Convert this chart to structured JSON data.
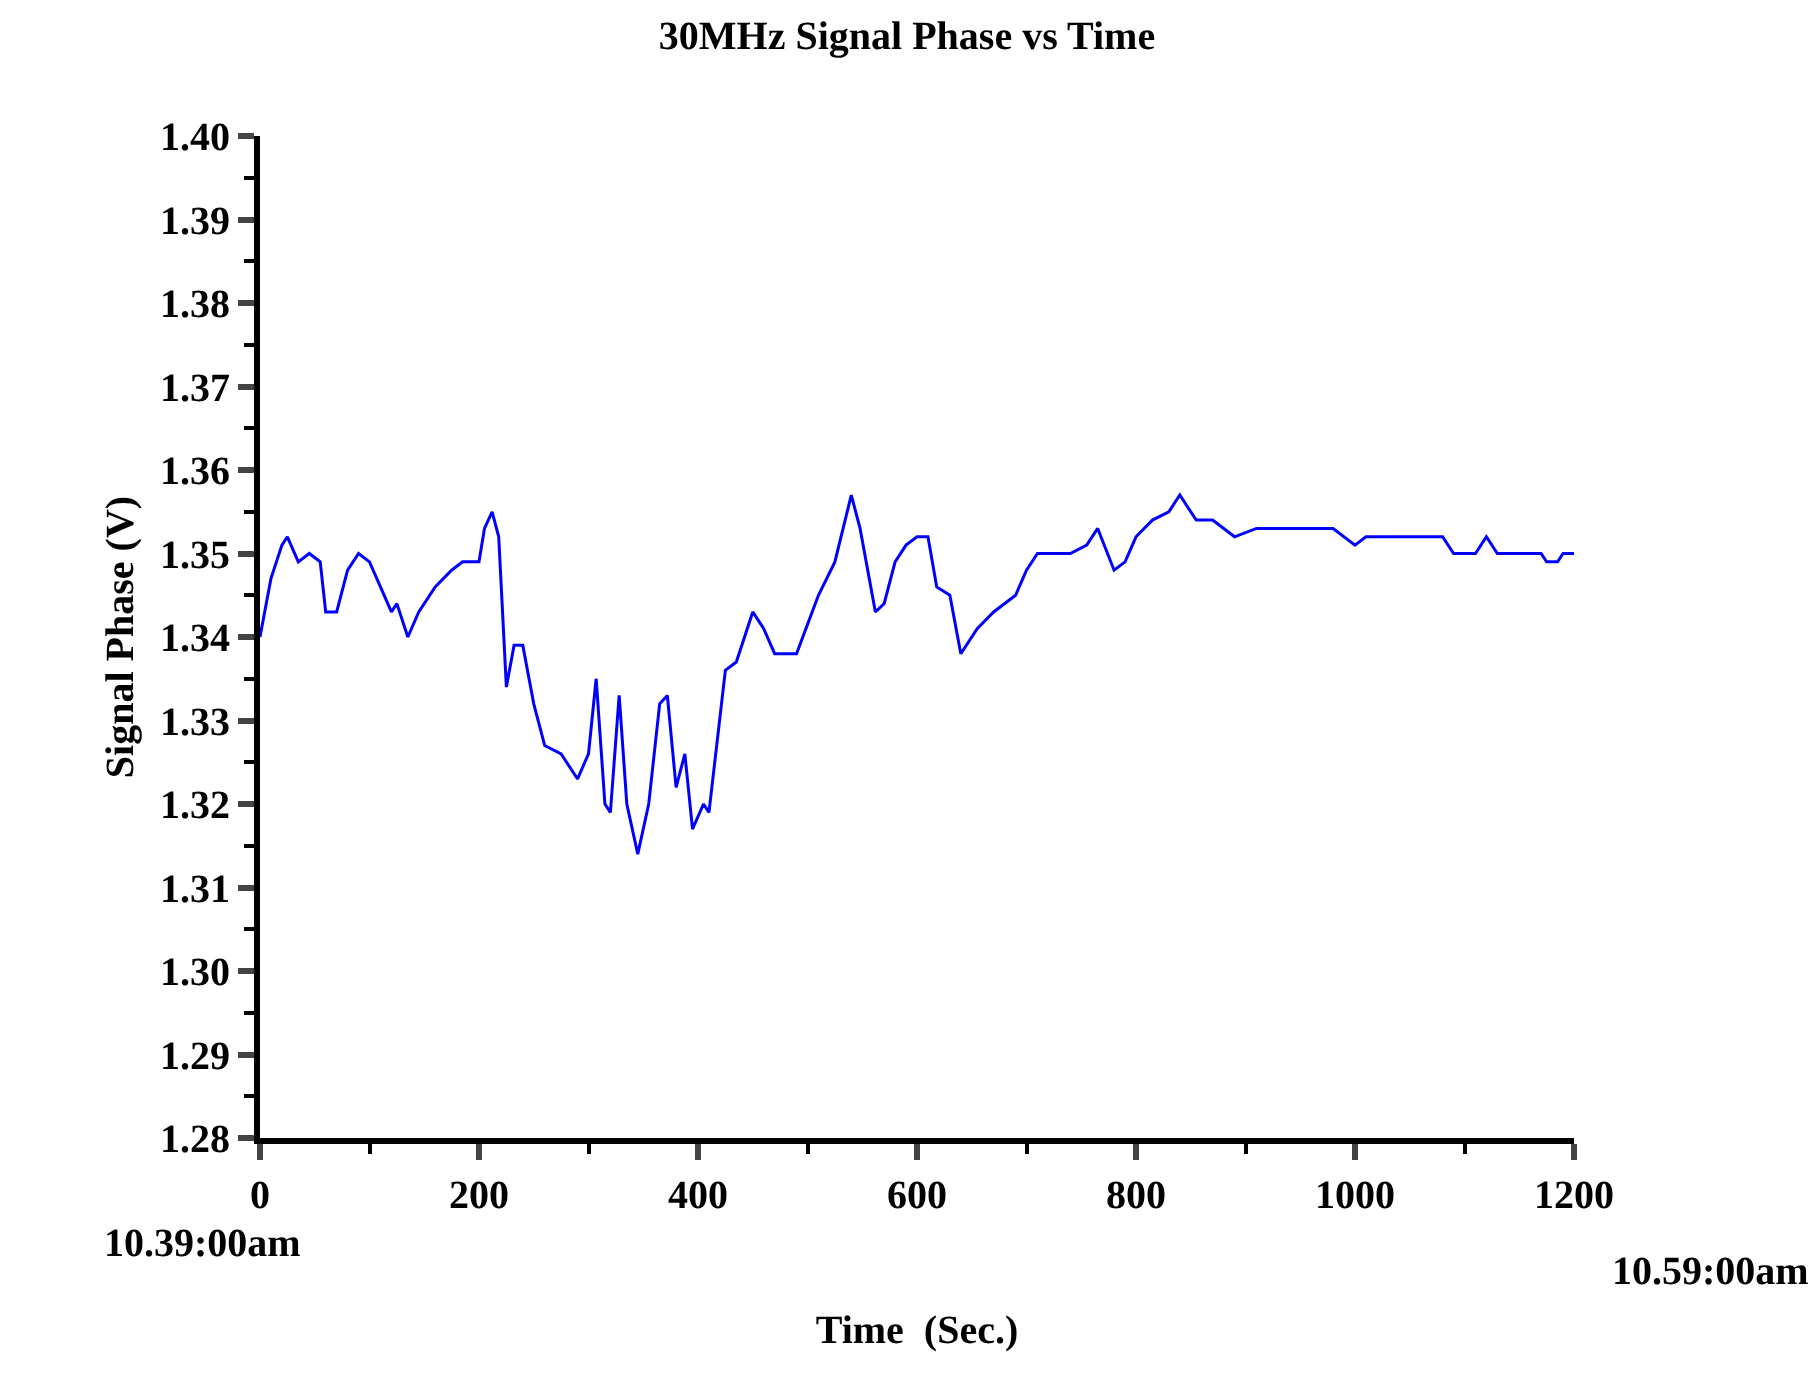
{
  "chart_data": {
    "type": "line",
    "title": "30MHz Signal Phase vs Time",
    "xlabel": "Time  (Sec.)",
    "ylabel": "Signal Phase (V)",
    "annotations": [
      "10.39:00am",
      "10.59:00am"
    ],
    "series": [
      {
        "color": "#0000ff",
        "x": [
          0,
          10,
          20,
          25,
          35,
          45,
          55,
          60,
          70,
          80,
          90,
          100,
          110,
          120,
          125,
          135,
          145,
          160,
          175,
          185,
          200,
          205,
          212,
          218,
          225,
          232,
          240,
          250,
          260,
          275,
          290,
          300,
          307,
          315,
          320,
          328,
          335,
          345,
          355,
          365,
          372,
          380,
          388,
          395,
          405,
          410,
          425,
          435,
          450,
          460,
          470,
          490,
          510,
          525,
          540,
          548,
          562,
          570,
          580,
          590,
          600,
          610,
          618,
          630,
          640,
          655,
          670,
          690,
          700,
          710,
          740,
          755,
          765,
          780,
          790,
          800,
          815,
          830,
          840,
          855,
          870,
          890,
          910,
          960,
          980,
          1000,
          1010,
          1080,
          1090,
          1110,
          1120,
          1130,
          1170,
          1175,
          1185,
          1190,
          1200
        ],
        "values": [
          1.34,
          1.347,
          1.351,
          1.352,
          1.349,
          1.35,
          1.349,
          1.343,
          1.343,
          1.348,
          1.35,
          1.349,
          1.346,
          1.343,
          1.344,
          1.34,
          1.343,
          1.346,
          1.348,
          1.349,
          1.349,
          1.353,
          1.355,
          1.352,
          1.334,
          1.339,
          1.339,
          1.332,
          1.327,
          1.326,
          1.323,
          1.326,
          1.335,
          1.32,
          1.319,
          1.333,
          1.32,
          1.314,
          1.32,
          1.332,
          1.333,
          1.322,
          1.326,
          1.317,
          1.32,
          1.319,
          1.336,
          1.337,
          1.343,
          1.341,
          1.338,
          1.338,
          1.345,
          1.349,
          1.357,
          1.353,
          1.343,
          1.344,
          1.349,
          1.351,
          1.352,
          1.352,
          1.346,
          1.345,
          1.338,
          1.341,
          1.343,
          1.345,
          1.348,
          1.35,
          1.35,
          1.351,
          1.353,
          1.348,
          1.349,
          1.352,
          1.354,
          1.355,
          1.357,
          1.354,
          1.354,
          1.352,
          1.353,
          1.353,
          1.353,
          1.351,
          1.352,
          1.352,
          1.35,
          1.35,
          1.352,
          1.35,
          1.35,
          1.349,
          1.349,
          1.35,
          1.35
        ]
      }
    ],
    "xlim": [
      0,
      1200
    ],
    "xticks": [
      0,
      200,
      400,
      600,
      800,
      1000,
      1200
    ],
    "ylim": [
      1.28,
      1.4
    ],
    "yticks": [
      1.28,
      1.29,
      {
        "value": 1.3,
        "label": "1.30"
      },
      1.31,
      1.32,
      1.33,
      1.34,
      1.35,
      1.36,
      1.37,
      1.38,
      1.39,
      {
        "value": 1.4,
        "label": "1.40"
      }
    ],
    "marker": "none",
    "line_style": "solid"
  }
}
